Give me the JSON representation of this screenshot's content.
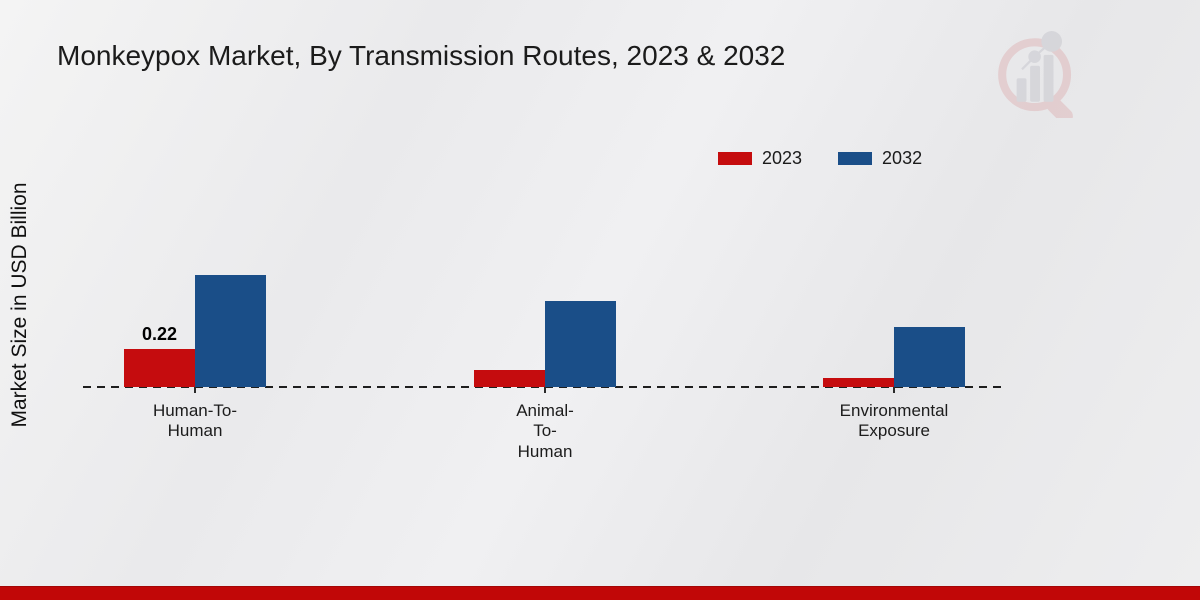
{
  "chart_data": {
    "type": "bar",
    "title": "Monkeypox Market, By Transmission Routes, 2023 & 2032",
    "xlabel": "",
    "ylabel": "Market Size in USD Billion",
    "categories": [
      "Human-To-Human",
      "Animal-To-Human",
      "Environmental Exposure"
    ],
    "category_display_lines": [
      [
        "Human-To-",
        "Human"
      ],
      [
        "Animal-",
        "To-",
        "Human"
      ],
      [
        "Environmental",
        "Exposure"
      ]
    ],
    "series": [
      {
        "name": "2023",
        "color": "#c50c0e",
        "values": [
          0.22,
          0.1,
          0.05
        ],
        "bar_labels": [
          "0.22",
          "",
          ""
        ]
      },
      {
        "name": "2032",
        "color": "#1a4e88",
        "values": [
          0.65,
          0.5,
          0.35
        ],
        "bar_labels": [
          "",
          "",
          ""
        ]
      }
    ],
    "ylim": [
      0,
      0.75
    ],
    "grid": false,
    "legend_position": "top-right",
    "baseline_style": "dashed"
  },
  "legend": {
    "items": [
      {
        "label": "2023",
        "color": "#c50c0e"
      },
      {
        "label": "2032",
        "color": "#1a4e88"
      }
    ]
  },
  "watermark": {
    "name": "market-research-magnifier-logo"
  },
  "footer": {
    "accent_color": "#c10707"
  }
}
